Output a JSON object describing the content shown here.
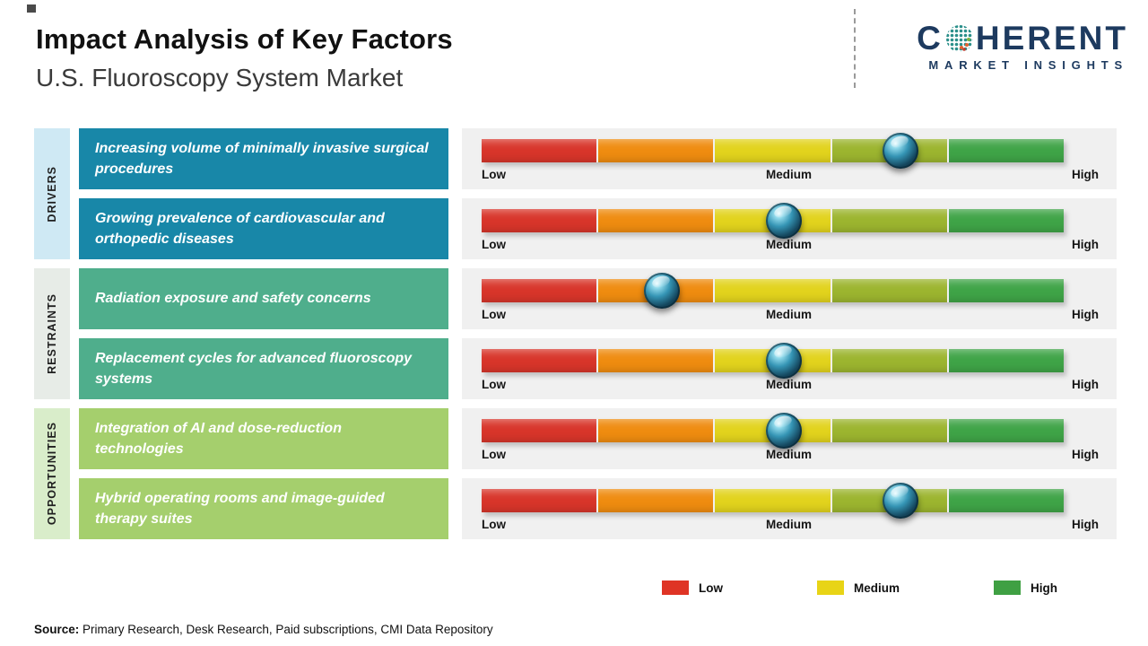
{
  "header": {
    "title": "Impact Analysis of Key Factors",
    "subtitle": "U.S. Fluoroscopy System Market"
  },
  "logo": {
    "prefix": "C",
    "suffix": "HERENT",
    "tagline": "MARKET INSIGHTS"
  },
  "chart_data": {
    "type": "bar",
    "description": "Impact analysis slider chart; each factor is rated with a marker on a Low-Medium-High color scale bar",
    "scale_labels": [
      "Low",
      "Medium",
      "High"
    ],
    "bar_colors": [
      "#d8352a",
      "#ef8c10",
      "#e2d31d",
      "#9cb52f",
      "#3fa447"
    ],
    "panel_bg": "#f0f0f0",
    "groups": [
      {
        "label": "DRIVERS",
        "label_bg": "#cfe9f4",
        "factor_bg": "#1887a8",
        "factors": [
          {
            "text": "Increasing volume of minimally invasive surgical procedures",
            "impact_level": "Medium-High",
            "impact_pct": 72
          },
          {
            "text": "Growing prevalence of cardiovascular and orthopedic diseases",
            "impact_level": "Medium",
            "impact_pct": 52
          }
        ]
      },
      {
        "label": "RESTRAINTS",
        "label_bg": "#e7ece7",
        "factor_bg": "#4fae8c",
        "factors": [
          {
            "text": "Radiation exposure and safety concerns",
            "impact_level": "Low-Medium",
            "impact_pct": 31
          },
          {
            "text": "Replacement cycles for advanced fluoroscopy systems",
            "impact_level": "Medium",
            "impact_pct": 52
          }
        ]
      },
      {
        "label": "OPPORTUNITIES",
        "label_bg": "#d9edca",
        "factor_bg": "#a5cf6d",
        "factors": [
          {
            "text": "Integration of AI and dose-reduction technologies",
            "impact_level": "Medium",
            "impact_pct": 52
          },
          {
            "text": "Hybrid operating rooms and image-guided therapy suites",
            "impact_level": "Medium-High",
            "impact_pct": 72
          }
        ]
      }
    ],
    "legend": [
      {
        "label": "Low",
        "color": "#df3425"
      },
      {
        "label": "Medium",
        "color": "#e8d416"
      },
      {
        "label": "High",
        "color": "#3fa043"
      }
    ]
  },
  "source": {
    "prefix": "Source:",
    "text": " Primary Research, Desk Research, Paid subscriptions, CMI Data Repository"
  }
}
